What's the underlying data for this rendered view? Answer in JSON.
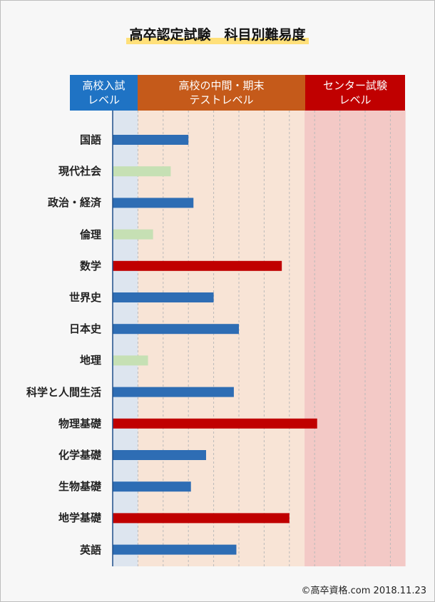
{
  "title": "高卒認定試験　科目別難易度",
  "bands": [
    {
      "line1": "高校入試",
      "line2": "レベル",
      "color": "#1f73c4",
      "bg": "#dde5ef"
    },
    {
      "line1": "高校の中間・期末",
      "line2": "テストレベル",
      "color": "#c55a1a",
      "bg": "#f8e4d6"
    },
    {
      "line1": "センター試験",
      "line2": "レベル",
      "color": "#c00000",
      "bg": "#f3c9c6"
    }
  ],
  "credit": "©高卒資格.com 2018.11.23",
  "colors": {
    "blue": "#2e6db4",
    "green": "#c6e0b4",
    "red": "#c00000"
  },
  "chart_data": {
    "type": "bar",
    "orientation": "horizontal",
    "title": "高卒認定試験　科目別難易度",
    "categories": [
      "国語",
      "現代社会",
      "政治・経済",
      "倫理",
      "数学",
      "世界史",
      "日本史",
      "地理",
      "科学と人間生活",
      "物理基礎",
      "化学基礎",
      "生物基礎",
      "地学基礎",
      "英語"
    ],
    "values": [
      3.0,
      2.3,
      3.2,
      1.6,
      6.7,
      4.0,
      5.0,
      1.4,
      4.8,
      8.1,
      3.7,
      3.1,
      7.0,
      4.9
    ],
    "bar_colors": [
      "#2e6db4",
      "#c6e0b4",
      "#2e6db4",
      "#c6e0b4",
      "#c00000",
      "#2e6db4",
      "#2e6db4",
      "#c6e0b4",
      "#2e6db4",
      "#c00000",
      "#2e6db4",
      "#2e6db4",
      "#c00000",
      "#2e6db4"
    ],
    "xlim": [
      0,
      11.6
    ],
    "band_ranges": [
      [
        0,
        1
      ],
      [
        1,
        7.6
      ],
      [
        7.6,
        11.6
      ]
    ],
    "grid": true
  }
}
